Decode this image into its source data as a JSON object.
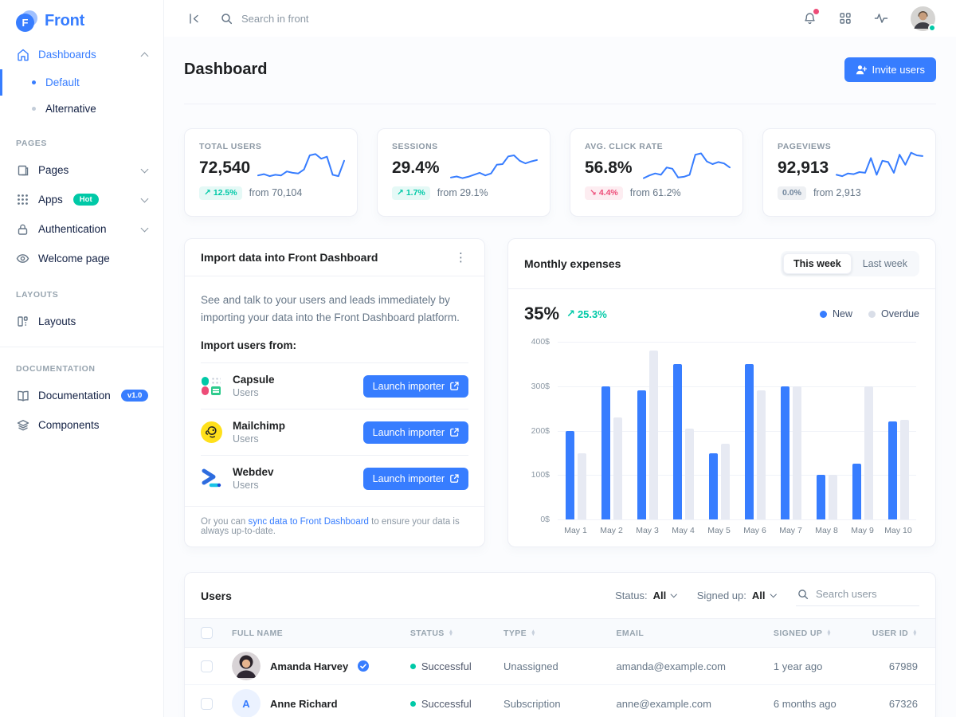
{
  "brand": {
    "name": "Front"
  },
  "topbar": {
    "search_placeholder": "Search in front",
    "icons": [
      "collapse-sidebar-icon",
      "search-icon",
      "bell-icon",
      "apps-grid-icon",
      "activity-icon",
      "user-avatar"
    ]
  },
  "sidebar": {
    "dashboards": {
      "label": "Dashboards",
      "items": [
        {
          "label": "Default",
          "active": true
        },
        {
          "label": "Alternative",
          "active": false
        }
      ]
    },
    "sections": [
      {
        "heading": "PAGES",
        "items": [
          {
            "label": "Pages",
            "icon": "pages-icon"
          },
          {
            "label": "Apps",
            "icon": "apps-icon",
            "badge": "Hot"
          },
          {
            "label": "Authentication",
            "icon": "lock-icon"
          },
          {
            "label": "Welcome page",
            "icon": "eye-icon"
          }
        ]
      },
      {
        "heading": "LAYOUTS",
        "items": [
          {
            "label": "Layouts",
            "icon": "layouts-icon"
          }
        ]
      },
      {
        "heading": "DOCUMENTATION",
        "items": [
          {
            "label": "Documentation",
            "icon": "book-icon",
            "badge": "v1.0"
          },
          {
            "label": "Components",
            "icon": "layers-icon"
          }
        ]
      }
    ]
  },
  "page": {
    "title": "Dashboard",
    "invite_button": "Invite users"
  },
  "stats": [
    {
      "label": "TOTAL USERS",
      "value": "72,540",
      "change": "12.5%",
      "direction": "up",
      "from": "from 70,104",
      "spark": [
        0.28,
        0.32,
        0.26,
        0.3,
        0.28,
        0.4,
        0.36,
        0.34,
        0.46,
        0.88,
        0.92,
        0.78,
        0.84,
        0.3,
        0.26,
        0.72
      ]
    },
    {
      "label": "SESSIONS",
      "value": "29.4%",
      "change": "1.7%",
      "direction": "up",
      "from": "from 29.1%",
      "spark": [
        0.22,
        0.25,
        0.2,
        0.24,
        0.3,
        0.36,
        0.28,
        0.34,
        0.6,
        0.62,
        0.85,
        0.88,
        0.72,
        0.64,
        0.7,
        0.74
      ]
    },
    {
      "label": "AVG. CLICK RATE",
      "value": "56.8%",
      "change": "4.4%",
      "direction": "down",
      "from": "from 61.2%",
      "spark": [
        0.2,
        0.28,
        0.34,
        0.3,
        0.52,
        0.48,
        0.22,
        0.24,
        0.3,
        0.9,
        0.94,
        0.7,
        0.62,
        0.68,
        0.64,
        0.52
      ]
    },
    {
      "label": "PAGEVIEWS",
      "value": "92,913",
      "change": "0.0%",
      "direction": "neutral",
      "from": "from 2,913",
      "spark": [
        0.3,
        0.26,
        0.34,
        0.32,
        0.38,
        0.36,
        0.8,
        0.3,
        0.72,
        0.68,
        0.36,
        0.9,
        0.6,
        0.96,
        0.88,
        0.86
      ]
    }
  ],
  "import_card": {
    "title": "Import data into Front Dashboard",
    "description": "See and talk to your users and leads immediately by importing your data into the Front Dashboard platform.",
    "subtitle": "Import users from:",
    "items": [
      {
        "name": "Capsule",
        "subtitle": "Users",
        "button": "Launch importer",
        "icon": "capsule-logo"
      },
      {
        "name": "Mailchimp",
        "subtitle": "Users",
        "button": "Launch importer",
        "icon": "mailchimp-logo"
      },
      {
        "name": "Webdev",
        "subtitle": "Users",
        "button": "Launch importer",
        "icon": "webdev-logo"
      }
    ],
    "footer": {
      "prefix": "Or you can ",
      "link": "sync data to Front Dashboard",
      "suffix": " to ensure your data is always up-to-date."
    }
  },
  "expenses_card": {
    "title": "Monthly expenses",
    "toggle": [
      {
        "label": "This week",
        "active": true
      },
      {
        "label": "Last week",
        "active": false
      }
    ],
    "value": "35%",
    "delta": "25.3%"
  },
  "chart_data": {
    "type": "bar",
    "title": "Monthly expenses",
    "categories": [
      "May 1",
      "May 2",
      "May 3",
      "May 4",
      "May 5",
      "May 6",
      "May 7",
      "May 8",
      "May 9",
      "May 10"
    ],
    "series": [
      {
        "name": "New",
        "color": "#377dff",
        "values": [
          200,
          300,
          290,
          350,
          150,
          350,
          300,
          100,
          125,
          220
        ]
      },
      {
        "name": "Overdue",
        "color": "#e7eaf3",
        "values": [
          150,
          230,
          380,
          205,
          170,
          290,
          300,
          100,
          300,
          225
        ]
      }
    ],
    "xlabel": "",
    "ylabel": "",
    "ylim": [
      0,
      400
    ],
    "yticks": [
      "400$",
      "300$",
      "200$",
      "100$",
      "0$"
    ],
    "grid": true,
    "legend_position": "top-right"
  },
  "users_card": {
    "title": "Users",
    "filters": {
      "status_label": "Status:",
      "status_value": "All",
      "signed_up_label": "Signed up:",
      "signed_up_value": "All",
      "search_placeholder": "Search users"
    },
    "columns": [
      "FULL NAME",
      "STATUS",
      "TYPE",
      "EMAIL",
      "SIGNED UP",
      "USER ID"
    ],
    "rows": [
      {
        "name": "Amanda Harvey",
        "verified": true,
        "status": "Successful",
        "type": "Unassigned",
        "email": "amanda@example.com",
        "signed_up": "1 year ago",
        "user_id": "67989",
        "avatar": "photo"
      },
      {
        "name": "Anne Richard",
        "verified": false,
        "status": "Successful",
        "type": "Subscription",
        "email": "anne@example.com",
        "signed_up": "6 months ago",
        "user_id": "67326",
        "avatar": "initial",
        "avatar_initial": "A"
      }
    ]
  },
  "colors": {
    "primary": "#377dff",
    "success": "#00c9a7",
    "danger": "#ed4c78",
    "text_dark": "#1e2022",
    "text_secondary": "#677788",
    "text_muted": "#8c98a4",
    "border": "#e7eaf3",
    "bar_new": "#377dff",
    "bar_overdue": "#e7eaf3"
  }
}
